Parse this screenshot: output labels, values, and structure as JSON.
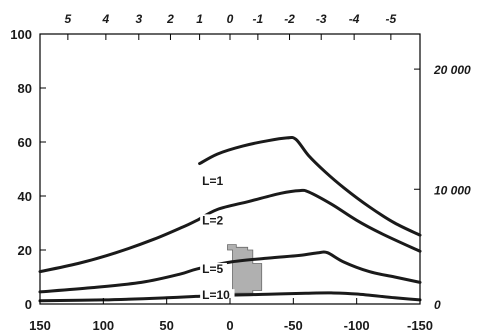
{
  "chart_data": {
    "type": "line",
    "title": "",
    "xlabel": "",
    "ylabel": "",
    "xlim": [
      150,
      -150
    ],
    "ylim": [
      0,
      100
    ],
    "grid": false,
    "x_ticks": [
      {
        "value": 150,
        "label": "150"
      },
      {
        "value": 100,
        "label": "100"
      },
      {
        "value": 50,
        "label": "50"
      },
      {
        "value": 0,
        "label": "0"
      },
      {
        "value": -50,
        "label": "-50"
      },
      {
        "value": -100,
        "label": "-100"
      },
      {
        "value": -150,
        "label": "-150"
      }
    ],
    "y_ticks": [
      {
        "value": 0,
        "label": "0"
      },
      {
        "value": 20,
        "label": "20"
      },
      {
        "value": 40,
        "label": "40"
      },
      {
        "value": 60,
        "label": "60"
      },
      {
        "value": 80,
        "label": "80"
      },
      {
        "value": 100,
        "label": "100"
      }
    ],
    "top_axis": {
      "ticks": [
        {
          "x": 128,
          "label": "5"
        },
        {
          "x": 98,
          "label": "4"
        },
        {
          "x": 72,
          "label": "3"
        },
        {
          "x": 47,
          "label": "2"
        },
        {
          "x": 24,
          "label": "1"
        },
        {
          "x": 0,
          "label": "0"
        },
        {
          "x": -22,
          "label": "-1"
        },
        {
          "x": -47,
          "label": "-2"
        },
        {
          "x": -72,
          "label": "-3"
        },
        {
          "x": -98,
          "label": "-4"
        },
        {
          "x": -127,
          "label": "-5"
        }
      ]
    },
    "right_axis": {
      "ticks": [
        {
          "y": 0,
          "label": "0"
        },
        {
          "y": 42.5,
          "label": "10 000"
        },
        {
          "y": 87,
          "label": "20 000"
        }
      ]
    },
    "series": [
      {
        "name": "L=1",
        "label_at": {
          "x": 22,
          "y": 44
        },
        "points": [
          [
            24,
            52
          ],
          [
            10,
            55.5
          ],
          [
            -10,
            58.5
          ],
          [
            -30,
            60.5
          ],
          [
            -45,
            61.5
          ],
          [
            -52,
            61
          ],
          [
            -62,
            55
          ],
          [
            -75,
            49
          ],
          [
            -90,
            43
          ],
          [
            -110,
            36
          ],
          [
            -130,
            30
          ],
          [
            -150,
            25.5
          ]
        ]
      },
      {
        "name": "L=2",
        "label_at": {
          "x": 22,
          "y": 29.5
        },
        "points": [
          [
            150,
            12
          ],
          [
            120,
            15
          ],
          [
            90,
            19
          ],
          [
            60,
            24
          ],
          [
            35,
            29
          ],
          [
            26,
            31
          ],
          [
            10,
            35
          ],
          [
            -15,
            38
          ],
          [
            -40,
            41
          ],
          [
            -55,
            42
          ],
          [
            -62,
            41.5
          ],
          [
            -80,
            37
          ],
          [
            -100,
            31
          ],
          [
            -120,
            26
          ],
          [
            -150,
            19.5
          ]
        ]
      },
      {
        "name": "L=5",
        "label_at": {
          "x": 22,
          "y": 11.5
        },
        "points": [
          [
            150,
            4.5
          ],
          [
            110,
            6
          ],
          [
            70,
            8
          ],
          [
            40,
            11
          ],
          [
            26,
            13
          ],
          [
            0,
            15.5
          ],
          [
            -30,
            17
          ],
          [
            -55,
            18
          ],
          [
            -70,
            19
          ],
          [
            -77,
            19
          ],
          [
            -90,
            15.5
          ],
          [
            -110,
            12
          ],
          [
            -130,
            10
          ],
          [
            -150,
            8
          ]
        ]
      },
      {
        "name": "L=10",
        "label_at": {
          "x": 22,
          "y": 1.8
        },
        "points": [
          [
            150,
            1.2
          ],
          [
            100,
            1.5
          ],
          [
            50,
            2.3
          ],
          [
            27,
            2.8
          ],
          [
            0,
            3.3
          ],
          [
            -30,
            3.6
          ],
          [
            -60,
            4
          ],
          [
            -80,
            4.1
          ],
          [
            -100,
            3.7
          ],
          [
            -130,
            2.3
          ],
          [
            -150,
            1.5
          ]
        ]
      }
    ],
    "shaded_region": {
      "fill": "#b0b0b0",
      "points": [
        [
          -2,
          1
        ],
        [
          -2,
          20
        ],
        [
          2,
          20
        ],
        [
          2,
          22
        ],
        [
          -5,
          22
        ],
        [
          -5,
          21
        ],
        [
          -14,
          21
        ],
        [
          -14,
          20
        ],
        [
          -18,
          20
        ],
        [
          -18,
          15
        ],
        [
          -25,
          15
        ],
        [
          -25,
          5
        ],
        [
          -18,
          5
        ],
        [
          -18,
          4
        ],
        [
          2,
          4
        ],
        [
          2,
          1
        ]
      ]
    },
    "colors": {
      "line": "#1a1a1a",
      "axis": "#000000"
    }
  }
}
